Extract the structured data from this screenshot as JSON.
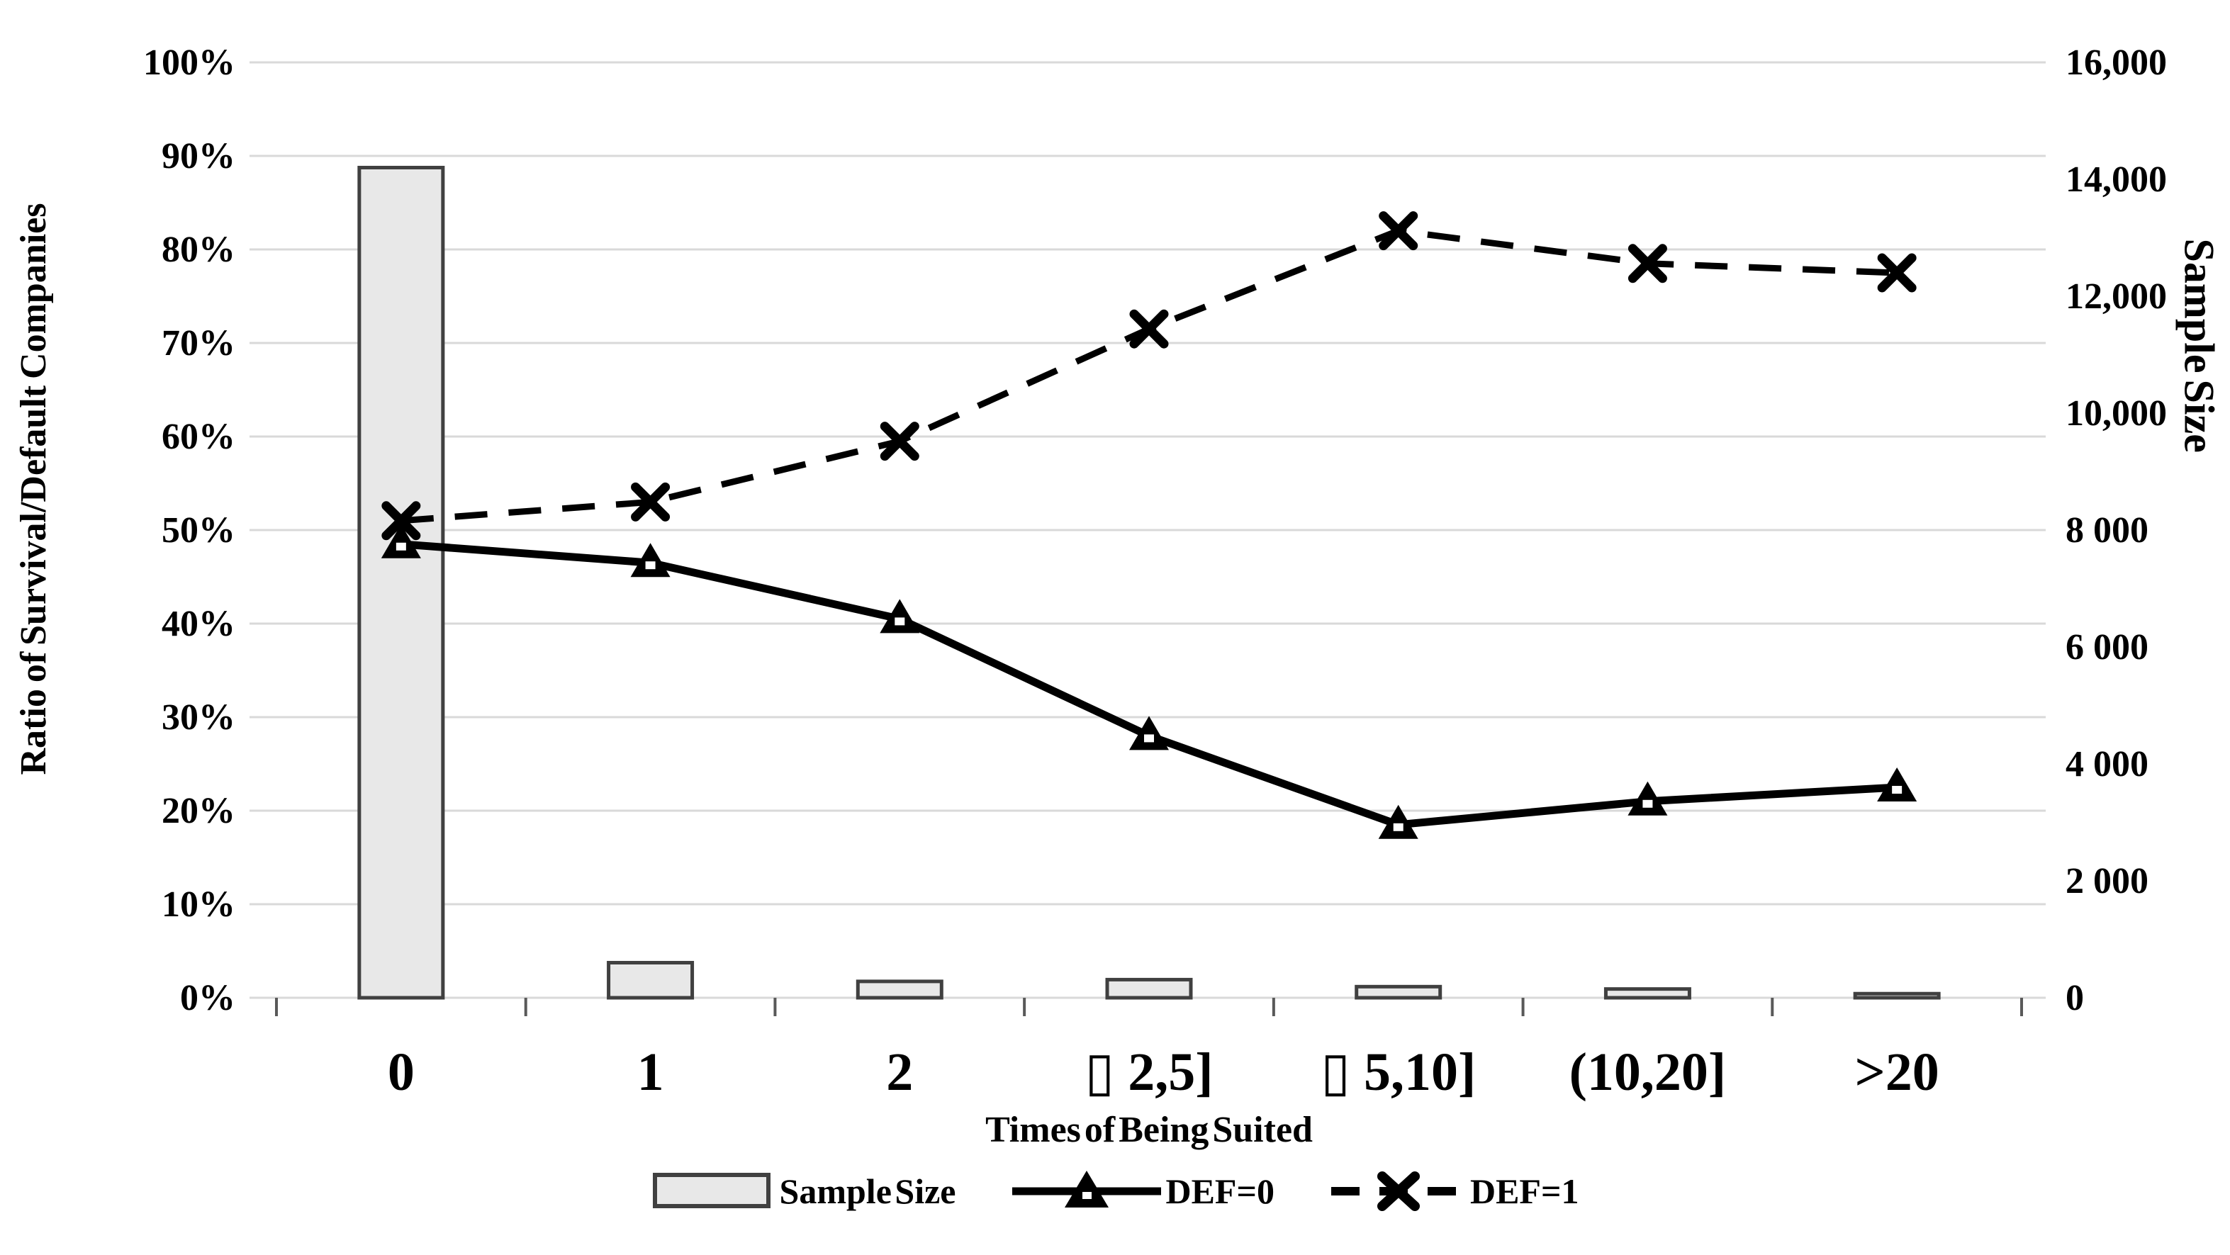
{
  "chart_data": {
    "type": "combo-bar-line",
    "title": "",
    "categories": [
      "0",
      "1",
      "2",
      "▯ 2,5]",
      "▯ 5,10]",
      "(10,20]",
      ">20"
    ],
    "x_axis_title": "Times of Being Suited",
    "left_axis": {
      "title": "Ratio of Survival/Default Companies",
      "min": 0,
      "max": 100,
      "step": 10,
      "tick_labels": [
        "0%",
        "10%",
        "20%",
        "30%",
        "40%",
        "50%",
        "60%",
        "70%",
        "80%",
        "90%",
        "100%"
      ]
    },
    "right_axis": {
      "title": "Sample Size",
      "min": 0,
      "max": 16000,
      "step": 2000,
      "tick_labels": [
        "0",
        "2 000",
        "4 000",
        "6 000",
        "8 000",
        "10,000",
        "12,000",
        "14,000",
        "16,000"
      ]
    },
    "series": [
      {
        "name": "Sample Size",
        "type": "bar",
        "axis": "right",
        "values": [
          14200,
          600,
          280,
          310,
          190,
          150,
          70
        ],
        "fill": "#e8e8e8",
        "border": "#404040"
      },
      {
        "name": "DEF=0",
        "type": "line",
        "axis": "left",
        "style": "solid",
        "marker": "triangle",
        "values": [
          48.5,
          46.5,
          40.5,
          28,
          18.5,
          21,
          22.5
        ],
        "color": "#000000"
      },
      {
        "name": "DEF=1",
        "type": "line",
        "axis": "left",
        "style": "dashed",
        "marker": "x",
        "values": [
          51,
          53,
          59.5,
          71.5,
          82,
          78.5,
          77.5
        ],
        "color": "#000000"
      }
    ],
    "legend": {
      "position": "bottom",
      "items": [
        "Sample Size",
        "DEF=0",
        "DEF=1"
      ]
    },
    "grid": true,
    "gridline_color": "#d9d9d9",
    "background": "#ffffff"
  }
}
